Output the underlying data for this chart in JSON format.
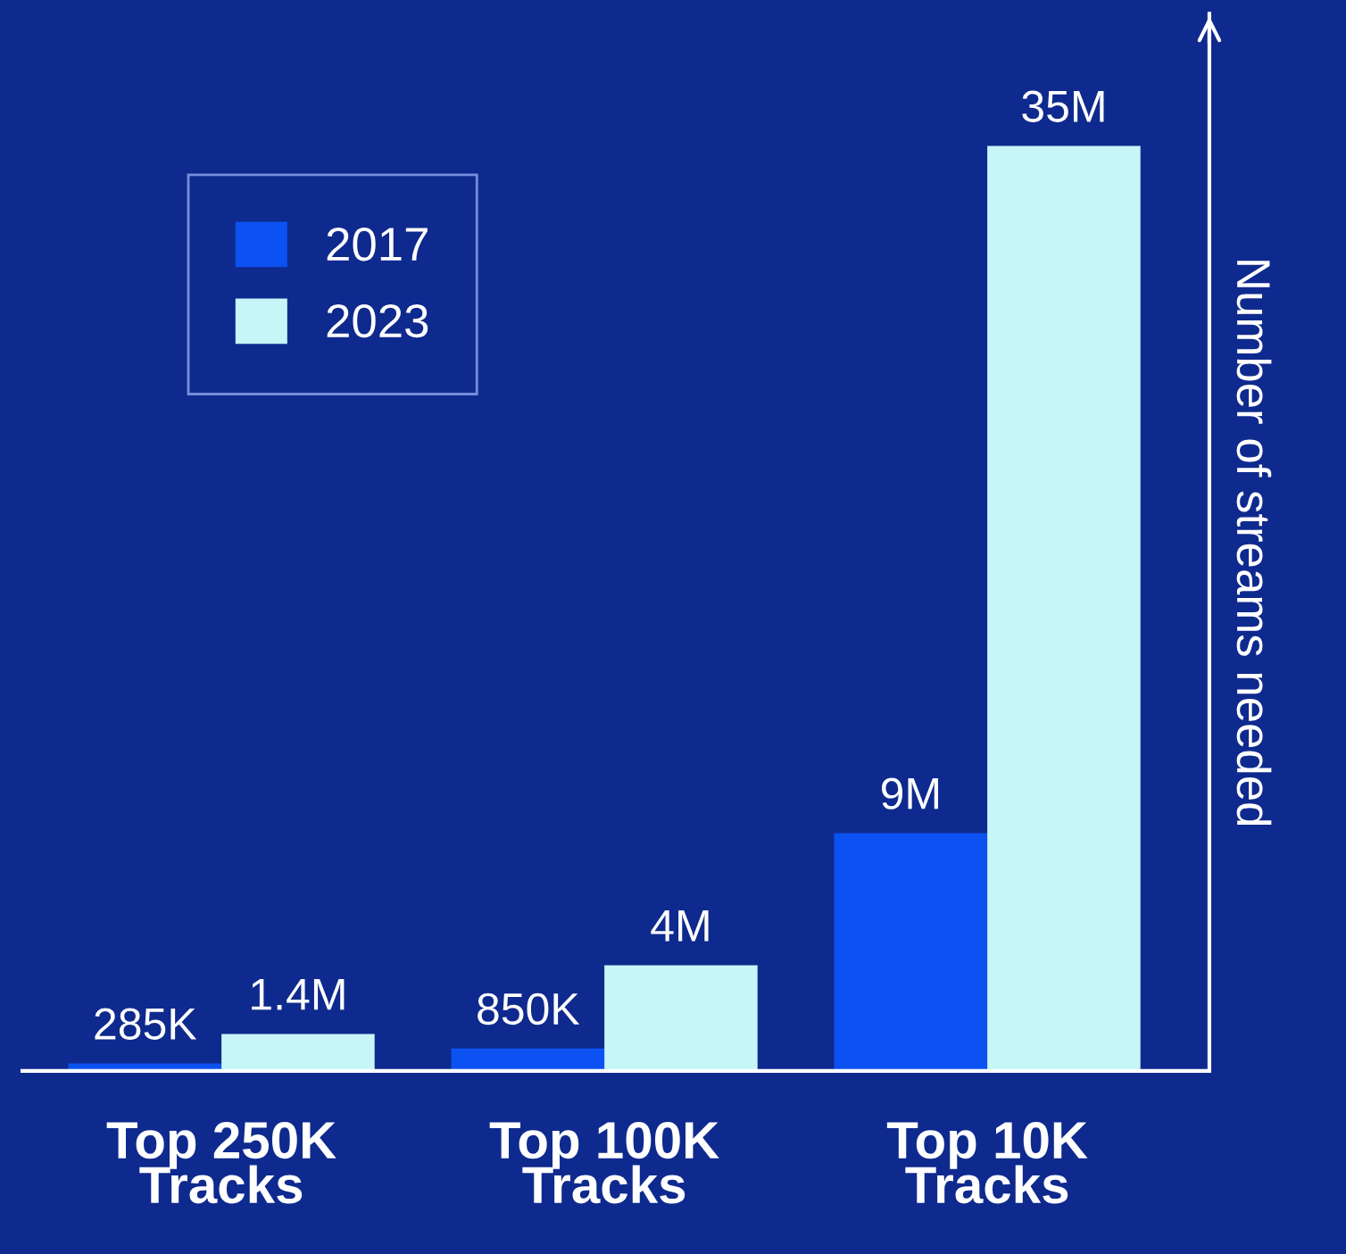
{
  "chart_data": {
    "type": "bar",
    "categories": [
      "Top 250K\nTracks",
      "Top 100K\nTracks",
      "Top 10K\nTracks"
    ],
    "ylabel": "Number of streams needed",
    "series": [
      {
        "name": "2017",
        "color": "#0c52f2",
        "values": [
          285000,
          850000,
          9000000
        ],
        "value_labels": [
          "285K",
          "850K",
          "9M"
        ]
      },
      {
        "name": "2023",
        "color": "#c6f6f8",
        "values": [
          1400000,
          4000000,
          35000000
        ],
        "value_labels": [
          "1.4M",
          "4M",
          "35M"
        ]
      }
    ],
    "ylim": [
      0,
      40000000
    ],
    "tick_labels": "x",
    "grid": false,
    "legend": "top left"
  }
}
